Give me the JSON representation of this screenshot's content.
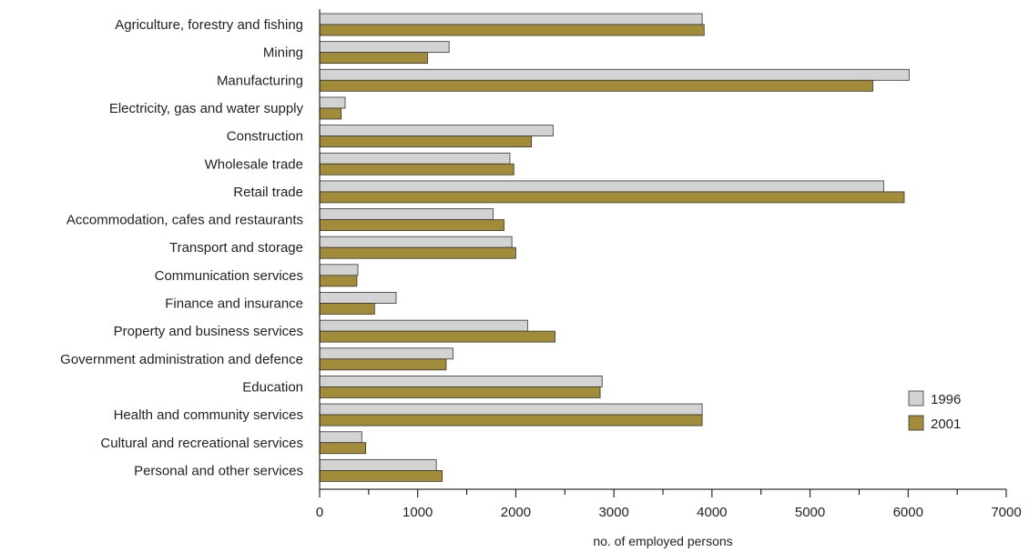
{
  "chart_data": {
    "type": "bar",
    "orientation": "horizontal",
    "categories": [
      "Agriculture, forestry and fishing",
      "Mining",
      "Manufacturing",
      "Electricity, gas and water supply",
      "Construction",
      "Wholesale trade",
      "Retail trade",
      "Accommodation, cafes and restaurants",
      "Transport and storage",
      "Communication services",
      "Finance and insurance",
      "Property and business services",
      "Government administration and defence",
      "Education",
      "Health and community services",
      "Cultural and recreational services",
      "Personal and other services"
    ],
    "series": [
      {
        "name": "1996",
        "color": "#d3d3d3",
        "values": [
          3900,
          1320,
          6010,
          260,
          2380,
          1940,
          5750,
          1770,
          1960,
          390,
          780,
          2120,
          1360,
          2880,
          3900,
          430,
          1190
        ]
      },
      {
        "name": "2001",
        "color": "#a28c3a",
        "values": [
          3920,
          1100,
          5640,
          220,
          2160,
          1980,
          5960,
          1880,
          2000,
          380,
          560,
          2400,
          1290,
          2860,
          3900,
          470,
          1250
        ]
      }
    ],
    "xlabel": "no. of employed persons",
    "ylabel": "",
    "title": "",
    "xlim": [
      0,
      7000
    ],
    "xticks": [
      0,
      1000,
      2000,
      3000,
      4000,
      5000,
      6000,
      7000
    ],
    "grid": false,
    "legend_position": "right"
  }
}
